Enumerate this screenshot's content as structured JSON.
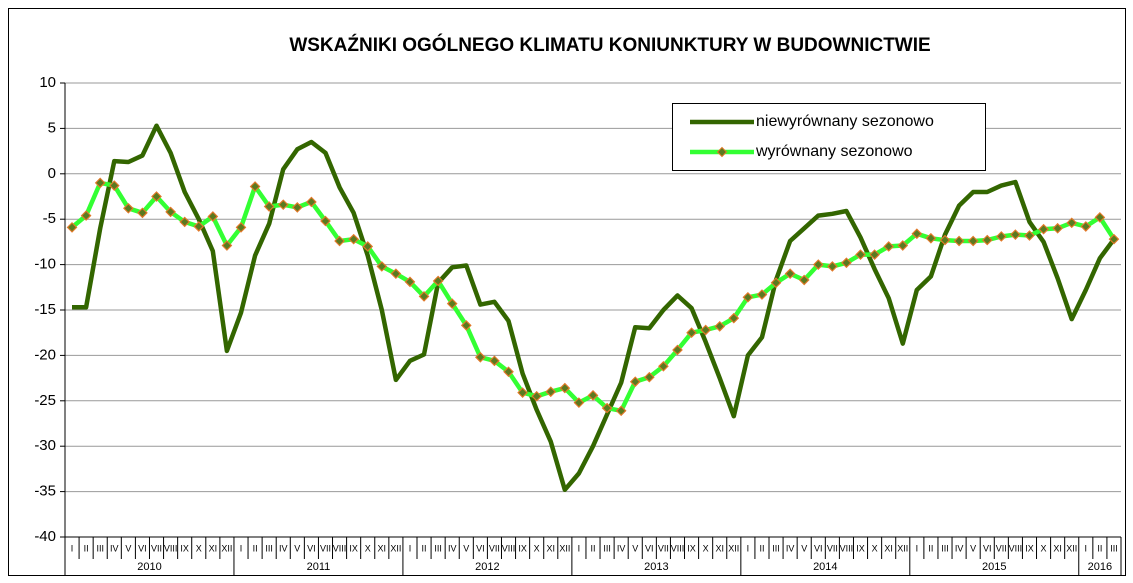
{
  "chart_data": {
    "type": "line",
    "title": "WSKAŹNIKI OGÓLNEGO KLIMATU KONIUNKTURY W BUDOWNICTWIE",
    "categories": [
      "I",
      "II",
      "III",
      "IV",
      "V",
      "VI",
      "VII",
      "VIII",
      "IX",
      "X",
      "XI",
      "XII",
      "I",
      "II",
      "III",
      "IV",
      "V",
      "VI",
      "VII",
      "VIII",
      "IX",
      "X",
      "XI",
      "XII",
      "I",
      "II",
      "III",
      "IV",
      "V",
      "VI",
      "VII",
      "VIII",
      "IX",
      "X",
      "XI",
      "XII",
      "I",
      "II",
      "III",
      "IV",
      "V",
      "VI",
      "VII",
      "VIII",
      "IX",
      "X",
      "XI",
      "XII",
      "I",
      "II",
      "III",
      "IV",
      "V",
      "VI",
      "VII",
      "VIII",
      "IX",
      "X",
      "XI",
      "XII",
      "I",
      "II",
      "III",
      "IV",
      "V",
      "VI",
      "VII",
      "VIII",
      "IX",
      "X",
      "XI",
      "XII",
      "I",
      "II",
      "III"
    ],
    "years": [
      "2010",
      "2011",
      "2012",
      "2013",
      "2014",
      "2015",
      "2016"
    ],
    "series": [
      {
        "name": "niewyrównany sezonowo",
        "color": "#336600",
        "markers": false,
        "values": [
          -14.7,
          -14.7,
          -6,
          1.4,
          1.3,
          2,
          5.3,
          2.3,
          -2,
          -5,
          -8.5,
          -19.5,
          -15.3,
          -9,
          -5.5,
          0.5,
          2.7,
          3.5,
          2.3,
          -1.5,
          -4.3,
          -9,
          -15,
          -22.7,
          -20.6,
          -19.9,
          -12,
          -10.3,
          -10.1,
          -14.4,
          -14.1,
          -16.2,
          -22,
          -26,
          -29.5,
          -34.8,
          -33,
          -30,
          -26.5,
          -23,
          -16.9,
          -17,
          -15,
          -13.4,
          -14.8,
          -18.5,
          -22.5,
          -26.7,
          -20,
          -18,
          -11.7,
          -7.4,
          -6,
          -4.6,
          -4.4,
          -4.1,
          -7,
          -10.5,
          -13.7,
          -18.7,
          -12.8,
          -11.3,
          -6.7,
          -3.5,
          -2,
          -2,
          -1.3,
          -0.9,
          -5.3,
          -7.5,
          -11.5,
          -16,
          -12.8,
          -9.3,
          -7.2
        ]
      },
      {
        "name": "wyrównany sezonowo",
        "color": "#33ff33",
        "markers": true,
        "values": [
          -5.9,
          -4.6,
          -1.0,
          -1.3,
          -3.8,
          -4.3,
          -2.5,
          -4.2,
          -5.3,
          -5.8,
          -4.7,
          -7.9,
          -5.9,
          -1.4,
          -3.6,
          -3.4,
          -3.7,
          -3.1,
          -5.2,
          -7.4,
          -7.2,
          -8.0,
          -10.2,
          -11.0,
          -11.9,
          -13.5,
          -11.8,
          -14.3,
          -16.7,
          -20.2,
          -20.6,
          -21.8,
          -24.1,
          -24.5,
          -24,
          -23.6,
          -25.2,
          -24.4,
          -25.8,
          -26.1,
          -22.9,
          -22.4,
          -21.2,
          -19.4,
          -17.5,
          -17.2,
          -16.8,
          -15.9,
          -13.6,
          -13.3,
          -12.0,
          -11.0,
          -11.7,
          -10.0,
          -10.2,
          -9.8,
          -8.9,
          -8.9,
          -8.0,
          -7.9,
          -6.6,
          -7.1,
          -7.3,
          -7.4,
          -7.4,
          -7.3,
          -6.9,
          -6.7,
          -6.8,
          -6.1,
          -6.0,
          -5.4,
          -5.8,
          -4.8,
          -7.2
        ]
      }
    ],
    "ylim": [
      -40,
      10
    ],
    "yticks": [
      10,
      5,
      0,
      -5,
      -10,
      -15,
      -20,
      -25,
      -30,
      -35,
      -40
    ],
    "grid": true,
    "legend": "top-right"
  }
}
